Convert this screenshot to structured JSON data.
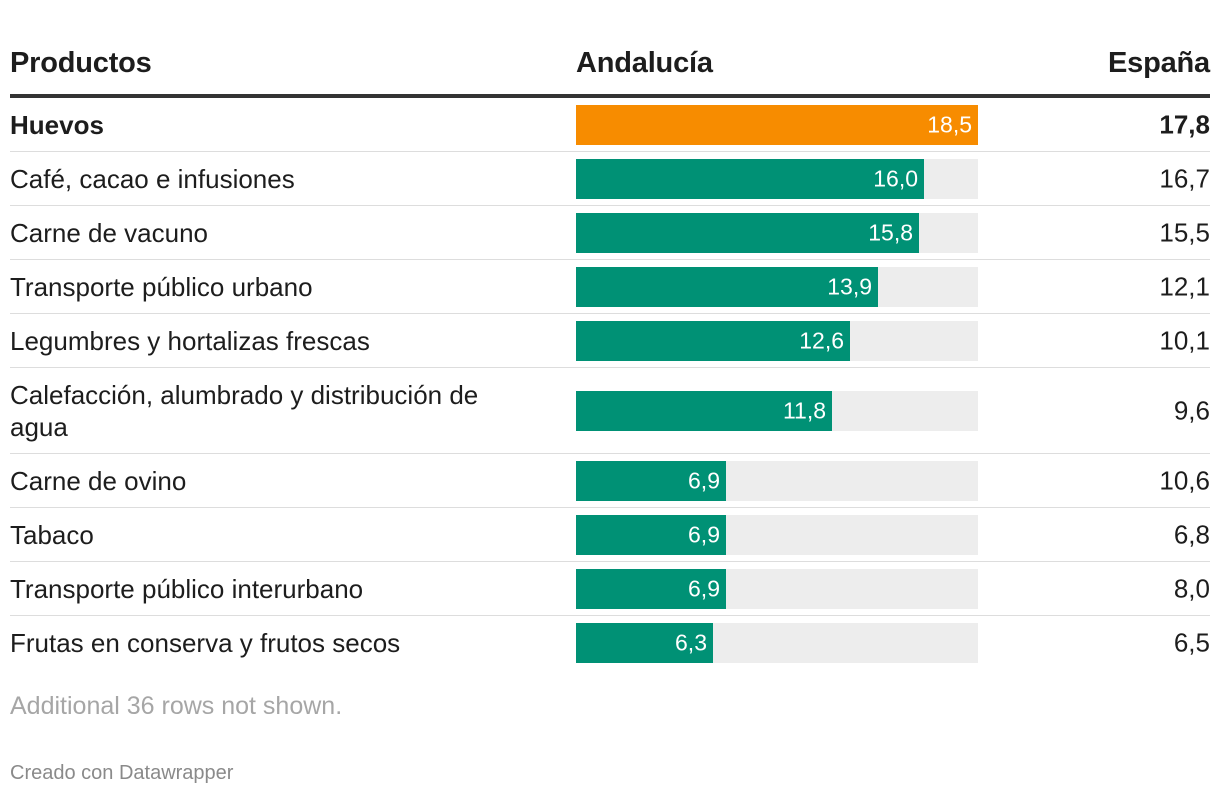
{
  "header": {
    "product_label": "Productos",
    "andalucia_label": "Andalucía",
    "espana_label": "España"
  },
  "chart_data": {
    "type": "table",
    "title": "",
    "columns": [
      "Productos",
      "Andalucía",
      "España"
    ],
    "bar_column": "Andalucía",
    "bar_max": 18.5,
    "highlight_color": "#f78c00",
    "bar_color": "#009175",
    "track_color": "#ededed",
    "rows": [
      {
        "product": "Huevos",
        "andalucia": 18.5,
        "andalucia_label": "18,5",
        "espana": "17,8",
        "highlight": true
      },
      {
        "product": "Café, cacao e infusiones",
        "andalucia": 16.0,
        "andalucia_label": "16,0",
        "espana": "16,7",
        "highlight": false
      },
      {
        "product": "Carne de vacuno",
        "andalucia": 15.8,
        "andalucia_label": "15,8",
        "espana": "15,5",
        "highlight": false
      },
      {
        "product": "Transporte público urbano",
        "andalucia": 13.9,
        "andalucia_label": "13,9",
        "espana": "12,1",
        "highlight": false
      },
      {
        "product": "Legumbres y hortalizas frescas",
        "andalucia": 12.6,
        "andalucia_label": "12,6",
        "espana": "10,1",
        "highlight": false
      },
      {
        "product": "Calefacción, alumbrado y distribución de agua",
        "andalucia": 11.8,
        "andalucia_label": "11,8",
        "espana": "9,6",
        "highlight": false
      },
      {
        "product": "Carne de ovino",
        "andalucia": 6.9,
        "andalucia_label": "6,9",
        "espana": "10,6",
        "highlight": false
      },
      {
        "product": "Tabaco",
        "andalucia": 6.9,
        "andalucia_label": "6,9",
        "espana": "6,8",
        "highlight": false
      },
      {
        "product": "Transporte público interurbano",
        "andalucia": 6.9,
        "andalucia_label": "6,9",
        "espana": "8,0",
        "highlight": false
      },
      {
        "product": "Frutas en conserva y frutos secos",
        "andalucia": 6.3,
        "andalucia_label": "6,3",
        "espana": "6,5",
        "highlight": false
      }
    ]
  },
  "footer": {
    "note": "Additional 36 rows not shown.",
    "credit": "Creado con Datawrapper"
  }
}
